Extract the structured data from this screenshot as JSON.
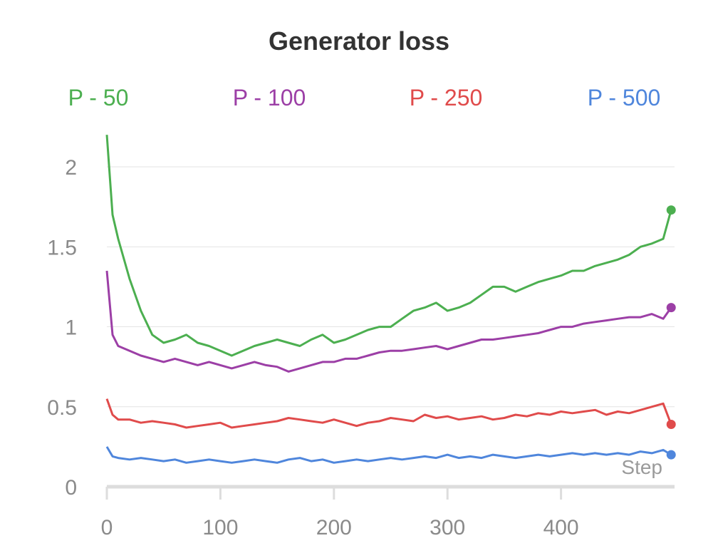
{
  "chart_data": {
    "type": "line",
    "title": "Generator loss",
    "xlabel": "Step",
    "ylabel": "",
    "xlim": [
      0,
      500
    ],
    "ylim": [
      0,
      2.25
    ],
    "x_ticks": [
      0,
      100,
      200,
      300,
      400
    ],
    "y_ticks": [
      0,
      0.5,
      1,
      1.5,
      2
    ],
    "x_tick_labels": [
      "0",
      "100",
      "200",
      "300",
      "400"
    ],
    "y_tick_labels": [
      "0",
      "0.5",
      "1",
      "1.5",
      "2"
    ],
    "grid": "horizontal",
    "legend_position": "top",
    "series": [
      {
        "name": "P - 50",
        "color": "#4caf50",
        "x": [
          0,
          5,
          10,
          20,
          30,
          40,
          50,
          60,
          70,
          80,
          90,
          100,
          110,
          120,
          130,
          140,
          150,
          160,
          170,
          180,
          190,
          200,
          210,
          220,
          230,
          240,
          250,
          260,
          270,
          280,
          290,
          300,
          310,
          320,
          330,
          340,
          350,
          360,
          370,
          380,
          390,
          400,
          410,
          420,
          430,
          440,
          450,
          460,
          470,
          480,
          490,
          497
        ],
        "y": [
          2.2,
          1.7,
          1.55,
          1.3,
          1.1,
          0.95,
          0.9,
          0.92,
          0.95,
          0.9,
          0.88,
          0.85,
          0.82,
          0.85,
          0.88,
          0.9,
          0.92,
          0.9,
          0.88,
          0.92,
          0.95,
          0.9,
          0.92,
          0.95,
          0.98,
          1.0,
          1.0,
          1.05,
          1.1,
          1.12,
          1.15,
          1.1,
          1.12,
          1.15,
          1.2,
          1.25,
          1.25,
          1.22,
          1.25,
          1.28,
          1.3,
          1.32,
          1.35,
          1.35,
          1.38,
          1.4,
          1.42,
          1.45,
          1.5,
          1.52,
          1.55,
          1.73
        ]
      },
      {
        "name": "P - 100",
        "color": "#9c3fa6",
        "x": [
          0,
          5,
          10,
          20,
          30,
          40,
          50,
          60,
          70,
          80,
          90,
          100,
          110,
          120,
          130,
          140,
          150,
          160,
          170,
          180,
          190,
          200,
          210,
          220,
          230,
          240,
          250,
          260,
          270,
          280,
          290,
          300,
          310,
          320,
          330,
          340,
          350,
          360,
          370,
          380,
          390,
          400,
          410,
          420,
          430,
          440,
          450,
          460,
          470,
          480,
          490,
          497
        ],
        "y": [
          1.35,
          0.95,
          0.88,
          0.85,
          0.82,
          0.8,
          0.78,
          0.8,
          0.78,
          0.76,
          0.78,
          0.76,
          0.74,
          0.76,
          0.78,
          0.76,
          0.75,
          0.72,
          0.74,
          0.76,
          0.78,
          0.78,
          0.8,
          0.8,
          0.82,
          0.84,
          0.85,
          0.85,
          0.86,
          0.87,
          0.88,
          0.86,
          0.88,
          0.9,
          0.92,
          0.92,
          0.93,
          0.94,
          0.95,
          0.96,
          0.98,
          1.0,
          1.0,
          1.02,
          1.03,
          1.04,
          1.05,
          1.06,
          1.06,
          1.08,
          1.05,
          1.12
        ]
      },
      {
        "name": "P - 250",
        "color": "#e04b4b",
        "x": [
          0,
          5,
          10,
          20,
          30,
          40,
          50,
          60,
          70,
          80,
          90,
          100,
          110,
          120,
          130,
          140,
          150,
          160,
          170,
          180,
          190,
          200,
          210,
          220,
          230,
          240,
          250,
          260,
          270,
          280,
          290,
          300,
          310,
          320,
          330,
          340,
          350,
          360,
          370,
          380,
          390,
          400,
          410,
          420,
          430,
          440,
          450,
          460,
          470,
          480,
          490,
          497
        ],
        "y": [
          0.55,
          0.45,
          0.42,
          0.42,
          0.4,
          0.41,
          0.4,
          0.39,
          0.37,
          0.38,
          0.39,
          0.4,
          0.37,
          0.38,
          0.39,
          0.4,
          0.41,
          0.43,
          0.42,
          0.41,
          0.4,
          0.42,
          0.4,
          0.38,
          0.4,
          0.41,
          0.43,
          0.42,
          0.41,
          0.45,
          0.43,
          0.44,
          0.42,
          0.43,
          0.44,
          0.42,
          0.43,
          0.45,
          0.44,
          0.46,
          0.45,
          0.47,
          0.46,
          0.47,
          0.48,
          0.45,
          0.47,
          0.46,
          0.48,
          0.5,
          0.52,
          0.39
        ]
      },
      {
        "name": "P - 500",
        "color": "#4f86dc",
        "x": [
          0,
          5,
          10,
          20,
          30,
          40,
          50,
          60,
          70,
          80,
          90,
          100,
          110,
          120,
          130,
          140,
          150,
          160,
          170,
          180,
          190,
          200,
          210,
          220,
          230,
          240,
          250,
          260,
          270,
          280,
          290,
          300,
          310,
          320,
          330,
          340,
          350,
          360,
          370,
          380,
          390,
          400,
          410,
          420,
          430,
          440,
          450,
          460,
          470,
          480,
          490,
          497
        ],
        "y": [
          0.25,
          0.19,
          0.18,
          0.17,
          0.18,
          0.17,
          0.16,
          0.17,
          0.15,
          0.16,
          0.17,
          0.16,
          0.15,
          0.16,
          0.17,
          0.16,
          0.15,
          0.17,
          0.18,
          0.16,
          0.17,
          0.15,
          0.16,
          0.17,
          0.16,
          0.17,
          0.18,
          0.17,
          0.18,
          0.19,
          0.18,
          0.2,
          0.18,
          0.19,
          0.18,
          0.2,
          0.19,
          0.18,
          0.19,
          0.2,
          0.19,
          0.2,
          0.21,
          0.2,
          0.21,
          0.2,
          0.21,
          0.2,
          0.22,
          0.21,
          0.23,
          0.2
        ]
      }
    ]
  }
}
